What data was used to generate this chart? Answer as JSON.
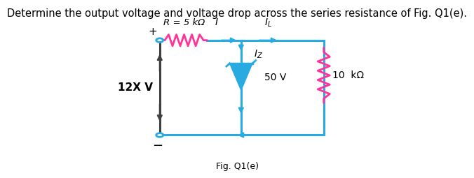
{
  "title": "Determine the output voltage and voltage drop across the series resistance of Fig. Q1(e).",
  "title_fontsize": 10.5,
  "circuit_color": "#29ABE2",
  "source_wire_color": "#404040",
  "resistor_series_color": "#FF3399",
  "resistor_load_color": "#FF3399",
  "text_color": "#000000",
  "source_label": "12X V",
  "resistor_label": "R = 5 kΩ",
  "zener_label": "50 V",
  "load_label": "10  kΩ",
  "current_I": "I",
  "current_IL": "I_L",
  "current_IZ": "I_Z",
  "fig_label": "Fig. Q1(e)"
}
